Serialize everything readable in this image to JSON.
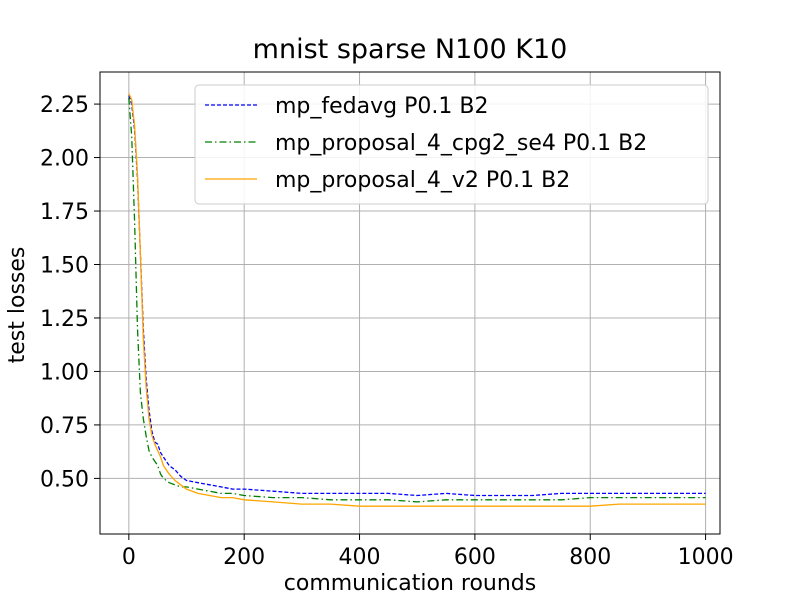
{
  "chart_data": {
    "type": "line",
    "title": "mnist sparse N100 K10",
    "xlabel": "communication rounds",
    "ylabel": "test losses",
    "xlim": [
      -50,
      1025
    ],
    "ylim": [
      0.24,
      2.4
    ],
    "xticks": [
      0,
      200,
      400,
      600,
      800,
      1000
    ],
    "yticks": [
      0.5,
      0.75,
      1.0,
      1.25,
      1.5,
      1.75,
      2.0,
      2.25
    ],
    "xtick_labels": [
      "0",
      "200",
      "400",
      "600",
      "800",
      "1000"
    ],
    "ytick_labels": [
      "0.50",
      "0.75",
      "1.00",
      "1.25",
      "1.50",
      "1.75",
      "2.00",
      "2.25"
    ],
    "grid": true,
    "legend_position": "top-right",
    "series": [
      {
        "name": "mp_fedavg P0.1 B2",
        "color": "#0000ff",
        "style": "dashed",
        "x": [
          0,
          5,
          10,
          15,
          20,
          25,
          30,
          35,
          40,
          45,
          50,
          55,
          60,
          70,
          80,
          90,
          100,
          120,
          140,
          160,
          180,
          200,
          250,
          300,
          350,
          400,
          450,
          500,
          550,
          600,
          650,
          700,
          750,
          800,
          850,
          900,
          950,
          1000
        ],
        "y": [
          2.29,
          2.25,
          2.13,
          1.9,
          1.55,
          1.2,
          0.97,
          0.82,
          0.72,
          0.67,
          0.66,
          0.62,
          0.6,
          0.56,
          0.54,
          0.51,
          0.49,
          0.48,
          0.47,
          0.46,
          0.45,
          0.45,
          0.44,
          0.43,
          0.43,
          0.43,
          0.43,
          0.42,
          0.43,
          0.42,
          0.42,
          0.42,
          0.43,
          0.43,
          0.43,
          0.43,
          0.43,
          0.43
        ]
      },
      {
        "name": "mp_proposal_4_cpg2_se4 P0.1 B2",
        "color": "#008000",
        "style": "dashdot",
        "x": [
          0,
          5,
          10,
          15,
          20,
          25,
          30,
          35,
          40,
          45,
          50,
          55,
          60,
          70,
          80,
          90,
          100,
          120,
          140,
          160,
          180,
          200,
          250,
          300,
          350,
          400,
          450,
          500,
          550,
          600,
          650,
          700,
          750,
          800,
          850,
          900,
          950,
          1000
        ],
        "y": [
          2.28,
          2.1,
          1.7,
          1.2,
          0.9,
          0.78,
          0.7,
          0.63,
          0.6,
          0.58,
          0.56,
          0.52,
          0.5,
          0.48,
          0.47,
          0.46,
          0.46,
          0.45,
          0.44,
          0.43,
          0.43,
          0.42,
          0.41,
          0.41,
          0.4,
          0.4,
          0.4,
          0.39,
          0.4,
          0.4,
          0.4,
          0.4,
          0.4,
          0.41,
          0.41,
          0.41,
          0.41,
          0.41
        ]
      },
      {
        "name": "mp_proposal_4_v2 P0.1 B2",
        "color": "#ffa500",
        "style": "solid",
        "x": [
          0,
          5,
          10,
          15,
          20,
          25,
          30,
          35,
          40,
          45,
          50,
          55,
          60,
          70,
          80,
          90,
          100,
          120,
          140,
          160,
          180,
          200,
          250,
          300,
          350,
          400,
          450,
          500,
          550,
          600,
          650,
          700,
          750,
          800,
          850,
          900,
          950,
          1000
        ],
        "y": [
          2.3,
          2.27,
          2.15,
          1.92,
          1.55,
          1.15,
          0.93,
          0.78,
          0.7,
          0.66,
          0.63,
          0.6,
          0.56,
          0.52,
          0.49,
          0.47,
          0.45,
          0.43,
          0.42,
          0.41,
          0.41,
          0.4,
          0.39,
          0.38,
          0.38,
          0.37,
          0.37,
          0.37,
          0.37,
          0.37,
          0.37,
          0.37,
          0.37,
          0.37,
          0.38,
          0.38,
          0.38,
          0.38
        ]
      }
    ]
  }
}
